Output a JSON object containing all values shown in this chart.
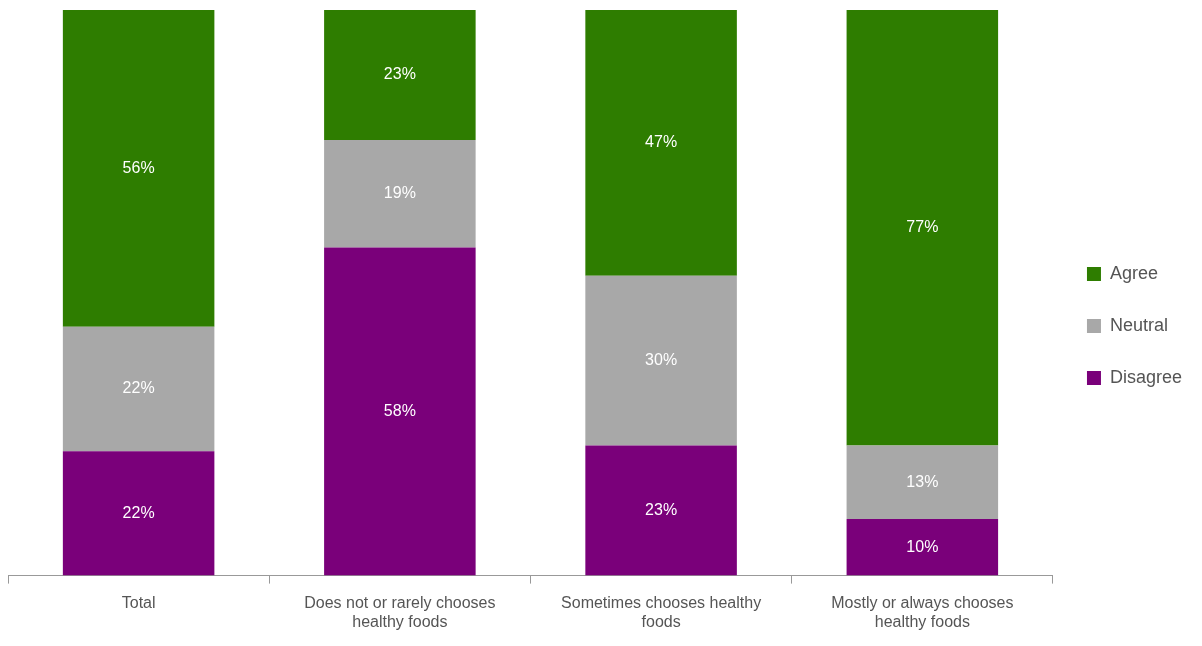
{
  "chart_data": {
    "type": "bar",
    "stacked": true,
    "legend": "right",
    "grid": false,
    "categories": [
      "Total",
      "Does not or rarely chooses healthy foods",
      "Sometimes chooses healthy foods",
      "Mostly or always chooses healthy foods"
    ],
    "series": [
      {
        "name": "Disagree",
        "color": "#7a007a",
        "values": [
          22,
          58,
          23,
          10
        ],
        "value_labels": [
          "22%",
          "58%",
          "23%",
          "10%"
        ]
      },
      {
        "name": "Neutral",
        "color": "#a8a8a8",
        "values": [
          22,
          19,
          30,
          13
        ],
        "value_labels": [
          "22%",
          "19%",
          "30%",
          "13%"
        ]
      },
      {
        "name": "Agree",
        "color": "#2e7d00",
        "values": [
          56,
          23,
          47,
          77
        ],
        "value_labels": [
          "56%",
          "23%",
          "47%",
          "77%"
        ]
      }
    ]
  }
}
